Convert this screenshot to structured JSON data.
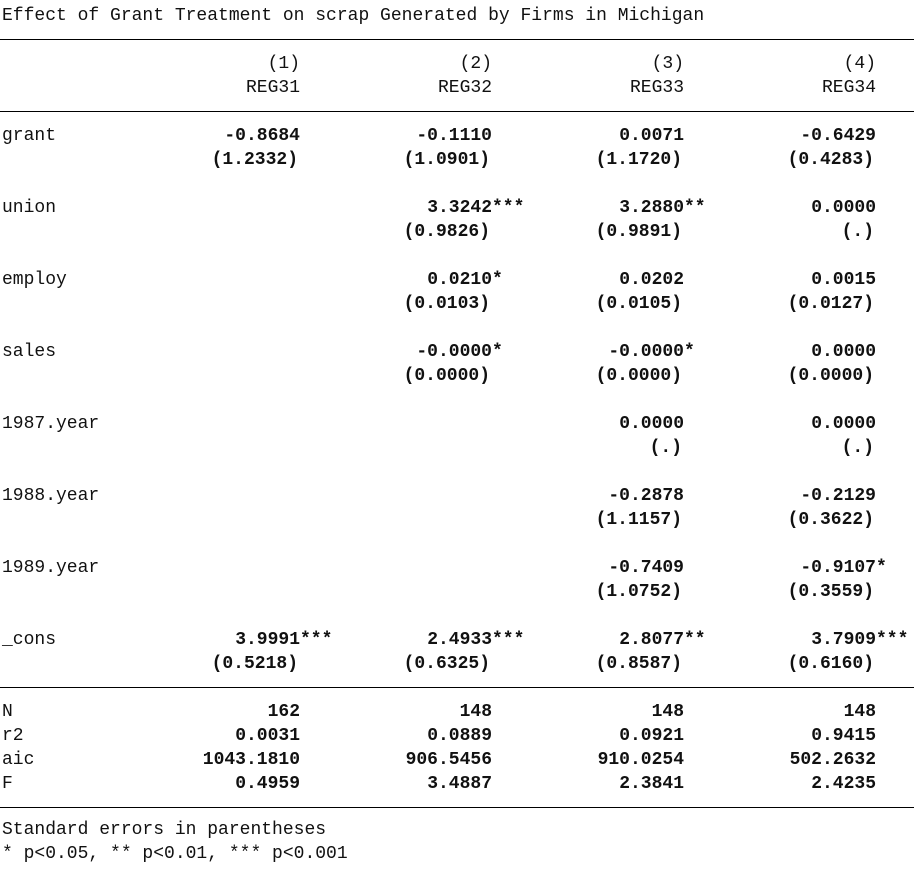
{
  "title": "Effect of Grant Treatment on scrap Generated by Firms in Michigan",
  "columns": [
    {
      "num": "(1)",
      "name": "REG31"
    },
    {
      "num": "(2)",
      "name": "REG32"
    },
    {
      "num": "(3)",
      "name": "REG33"
    },
    {
      "num": "(4)",
      "name": "REG34"
    }
  ],
  "rows": [
    {
      "label": "grant",
      "coef": [
        "-0.8684",
        "-0.1110",
        "0.0071",
        "-0.6429"
      ],
      "stars": [
        "",
        "",
        "",
        ""
      ],
      "se": [
        "(1.2332)",
        "(1.0901)",
        "(1.1720)",
        "(0.4283)"
      ]
    },
    {
      "label": "union",
      "coef": [
        "",
        "3.3242",
        "3.2880",
        "0.0000"
      ],
      "stars": [
        "",
        "***",
        "**",
        ""
      ],
      "se": [
        "",
        "(0.9826)",
        "(0.9891)",
        "(.)"
      ]
    },
    {
      "label": "employ",
      "coef": [
        "",
        "0.0210",
        "0.0202",
        "0.0015"
      ],
      "stars": [
        "",
        "*",
        "",
        ""
      ],
      "se": [
        "",
        "(0.0103)",
        "(0.0105)",
        "(0.0127)"
      ]
    },
    {
      "label": "sales",
      "coef": [
        "",
        "-0.0000",
        "-0.0000",
        "0.0000"
      ],
      "stars": [
        "",
        "*",
        "*",
        ""
      ],
      "se": [
        "",
        "(0.0000)",
        "(0.0000)",
        "(0.0000)"
      ]
    },
    {
      "label": "1987.year",
      "coef": [
        "",
        "",
        "0.0000",
        "0.0000"
      ],
      "stars": [
        "",
        "",
        "",
        ""
      ],
      "se": [
        "",
        "",
        "(.)",
        "(.)"
      ]
    },
    {
      "label": "1988.year",
      "coef": [
        "",
        "",
        "-0.2878",
        "-0.2129"
      ],
      "stars": [
        "",
        "",
        "",
        ""
      ],
      "se": [
        "",
        "",
        "(1.1157)",
        "(0.3622)"
      ]
    },
    {
      "label": "1989.year",
      "coef": [
        "",
        "",
        "-0.7409",
        "-0.9107"
      ],
      "stars": [
        "",
        "",
        "",
        "*"
      ],
      "se": [
        "",
        "",
        "(1.0752)",
        "(0.3559)"
      ]
    },
    {
      "label": "_cons",
      "coef": [
        "3.9991",
        "2.4933",
        "2.8077",
        "3.7909"
      ],
      "stars": [
        "***",
        "***",
        "**",
        "***"
      ],
      "se": [
        "(0.5218)",
        "(0.6325)",
        "(0.8587)",
        "(0.6160)"
      ]
    }
  ],
  "stats": [
    {
      "label": "N",
      "values": [
        "162",
        "148",
        "148",
        "148"
      ]
    },
    {
      "label": "r2",
      "values": [
        "0.0031",
        "0.0889",
        "0.0921",
        "0.9415"
      ]
    },
    {
      "label": "aic",
      "values": [
        "1043.1810",
        "906.5456",
        "910.0254",
        "502.2632"
      ]
    },
    {
      "label": "F",
      "values": [
        "0.4959",
        "3.4887",
        "2.3841",
        "2.4235"
      ]
    }
  ],
  "notes": [
    "Standard errors in parentheses",
    "* p<0.05, ** p<0.01, *** p<0.001"
  ]
}
